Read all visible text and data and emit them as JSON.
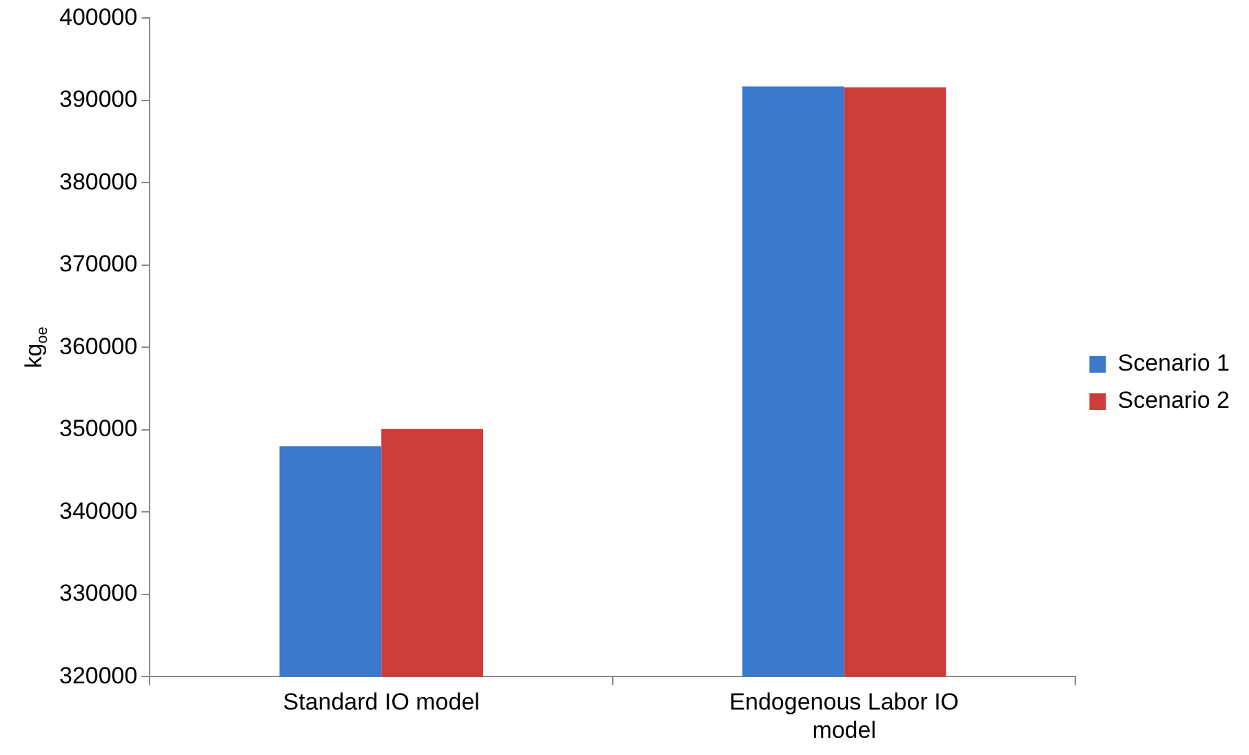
{
  "chart_data": {
    "type": "bar",
    "ylabel": "kg$_{oe}$",
    "categories": [
      "Standard IO model",
      "Endogenous Labor IO model"
    ],
    "series": [
      {
        "name": "Scenario 1",
        "color": "#3a79cc",
        "values": [
          348000,
          391700
        ]
      },
      {
        "name": "Scenario 2",
        "color": "#cc3d3a",
        "values": [
          350100,
          391600
        ]
      }
    ],
    "ylim": [
      320000,
      400000
    ],
    "yticks": [
      320000,
      330000,
      340000,
      350000,
      360000,
      370000,
      380000,
      390000,
      400000
    ],
    "grid": false,
    "legend": "right"
  }
}
